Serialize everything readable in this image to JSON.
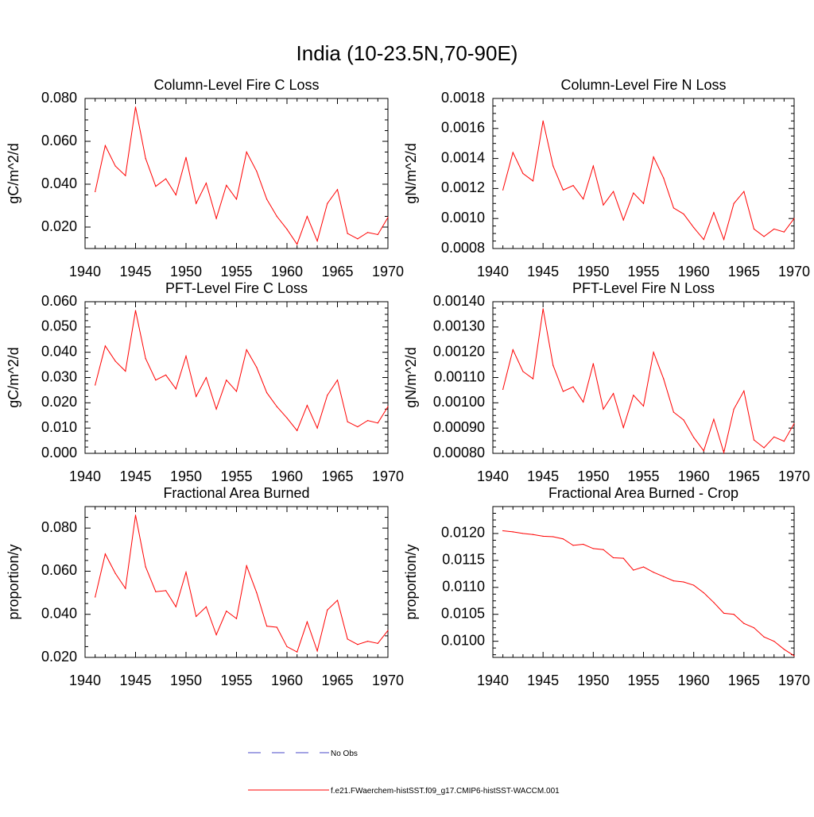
{
  "main_title": "India (10-23.5N,70-90E)",
  "legend": {
    "obs_label": "No Obs",
    "model_label": "f.e21.FWaerchem-histSST.f09_g17.CMIP6-histSST-WACCM.001",
    "obs_color": "#4a4ac8",
    "model_color": "#ff0000"
  },
  "chart_data": [
    {
      "type": "line",
      "title": "Column-Level Fire C Loss",
      "xlabel": "",
      "ylabel": "gC/m^2/d",
      "xlim": [
        1940,
        1970
      ],
      "ylim": [
        0.01,
        0.08
      ],
      "yticks": [
        0.02,
        0.04,
        0.06,
        0.08
      ],
      "ytick_labels": [
        "0.020",
        "0.040",
        "0.060",
        "0.080"
      ],
      "xticks": [
        1940,
        1945,
        1950,
        1955,
        1960,
        1965,
        1970
      ],
      "xtick_labels": [
        "1940",
        "1945",
        "1950",
        "1955",
        "1960",
        "1965",
        "1970"
      ],
      "x": [
        1941,
        1942,
        1943,
        1944,
        1945,
        1946,
        1947,
        1948,
        1949,
        1950,
        1951,
        1952,
        1953,
        1954,
        1955,
        1956,
        1957,
        1958,
        1959,
        1960,
        1961,
        1962,
        1963,
        1964,
        1965,
        1966,
        1967,
        1968,
        1969,
        1970
      ],
      "series": [
        {
          "values": [
            0.0365,
            0.058,
            0.0485,
            0.044,
            0.076,
            0.052,
            0.039,
            0.0425,
            0.035,
            0.0525,
            0.031,
            0.0405,
            0.024,
            0.0395,
            0.033,
            0.055,
            0.046,
            0.033,
            0.025,
            0.019,
            0.012,
            0.025,
            0.0135,
            0.031,
            0.0375,
            0.017,
            0.0145,
            0.0175,
            0.0165,
            0.0245
          ]
        }
      ]
    },
    {
      "type": "line",
      "title": "Column-Level Fire N Loss",
      "xlabel": "",
      "ylabel": "gN/m^2/d",
      "xlim": [
        1940,
        1970
      ],
      "ylim": [
        0.0008,
        0.0018
      ],
      "yticks": [
        0.0008,
        0.001,
        0.0012,
        0.0014,
        0.0016,
        0.0018
      ],
      "ytick_labels": [
        "0.0008",
        "0.0010",
        "0.0012",
        "0.0014",
        "0.0016",
        "0.0018"
      ],
      "xticks": [
        1940,
        1945,
        1950,
        1955,
        1960,
        1965,
        1970
      ],
      "xtick_labels": [
        "1940",
        "1945",
        "1950",
        "1955",
        "1960",
        "1965",
        "1970"
      ],
      "x": [
        1941,
        1942,
        1943,
        1944,
        1945,
        1946,
        1947,
        1948,
        1949,
        1950,
        1951,
        1952,
        1953,
        1954,
        1955,
        1956,
        1957,
        1958,
        1959,
        1960,
        1961,
        1962,
        1963,
        1964,
        1965,
        1966,
        1967,
        1968,
        1969,
        1970
      ],
      "series": [
        {
          "values": [
            0.00119,
            0.00144,
            0.0013,
            0.00125,
            0.00165,
            0.00135,
            0.00119,
            0.00122,
            0.00113,
            0.00135,
            0.00109,
            0.00118,
            0.00099,
            0.00117,
            0.0011,
            0.00141,
            0.00127,
            0.00107,
            0.00103,
            0.00094,
            0.00086,
            0.00104,
            0.00086,
            0.0011,
            0.00118,
            0.00093,
            0.00088,
            0.00093,
            0.00091,
            0.001
          ]
        }
      ]
    },
    {
      "type": "line",
      "title": "PFT-Level Fire C Loss",
      "xlabel": "",
      "ylabel": "gC/m^2/d",
      "xlim": [
        1940,
        1970
      ],
      "ylim": [
        0.0,
        0.06
      ],
      "yticks": [
        0.0,
        0.01,
        0.02,
        0.03,
        0.04,
        0.05,
        0.06
      ],
      "ytick_labels": [
        "0.000",
        "0.010",
        "0.020",
        "0.030",
        "0.040",
        "0.050",
        "0.060"
      ],
      "xticks": [
        1940,
        1945,
        1950,
        1955,
        1960,
        1965,
        1970
      ],
      "xtick_labels": [
        "1940",
        "1945",
        "1950",
        "1955",
        "1960",
        "1965",
        "1970"
      ],
      "x": [
        1941,
        1942,
        1943,
        1944,
        1945,
        1946,
        1947,
        1948,
        1949,
        1950,
        1951,
        1952,
        1953,
        1954,
        1955,
        1956,
        1957,
        1958,
        1959,
        1960,
        1961,
        1962,
        1963,
        1964,
        1965,
        1966,
        1967,
        1968,
        1969,
        1970
      ],
      "series": [
        {
          "values": [
            0.027,
            0.0425,
            0.0365,
            0.0325,
            0.0565,
            0.0375,
            0.029,
            0.031,
            0.0255,
            0.0385,
            0.0225,
            0.03,
            0.0175,
            0.029,
            0.0245,
            0.041,
            0.034,
            0.024,
            0.0185,
            0.014,
            0.009,
            0.019,
            0.01,
            0.023,
            0.029,
            0.0125,
            0.0105,
            0.013,
            0.012,
            0.0185
          ]
        }
      ]
    },
    {
      "type": "line",
      "title": "PFT-Level Fire N Loss",
      "xlabel": "",
      "ylabel": "gN/m^2/d",
      "xlim": [
        1940,
        1970
      ],
      "ylim": [
        0.0008,
        0.0014
      ],
      "yticks": [
        0.0008,
        0.0009,
        0.001,
        0.0011,
        0.0012,
        0.0013,
        0.0014
      ],
      "ytick_labels": [
        "0.00080",
        "0.00090",
        "0.00100",
        "0.00110",
        "0.00120",
        "0.00130",
        "0.00140"
      ],
      "xticks": [
        1940,
        1945,
        1950,
        1955,
        1960,
        1965,
        1970
      ],
      "xtick_labels": [
        "1940",
        "1945",
        "1950",
        "1955",
        "1960",
        "1965",
        "1970"
      ],
      "x": [
        1941,
        1942,
        1943,
        1944,
        1945,
        1946,
        1947,
        1948,
        1949,
        1950,
        1951,
        1952,
        1953,
        1954,
        1955,
        1956,
        1957,
        1958,
        1959,
        1960,
        1961,
        1962,
        1963,
        1964,
        1965,
        1966,
        1967,
        1968,
        1969,
        1970
      ],
      "series": [
        {
          "values": [
            0.001053,
            0.00121,
            0.001124,
            0.001095,
            0.001372,
            0.001148,
            0.001045,
            0.001063,
            0.001003,
            0.001155,
            0.000975,
            0.001037,
            0.000902,
            0.00103,
            0.000987,
            0.0012,
            0.001095,
            0.000963,
            0.000932,
            0.000863,
            0.00081,
            0.000935,
            0.000803,
            0.000975,
            0.001047,
            0.000853,
            0.000822,
            0.000865,
            0.000848,
            0.000918
          ]
        }
      ]
    },
    {
      "type": "line",
      "title": "Fractional Area Burned",
      "xlabel": "",
      "ylabel": "proportion/y",
      "xlim": [
        1940,
        1970
      ],
      "ylim": [
        0.02,
        0.09
      ],
      "yticks": [
        0.02,
        0.04,
        0.06,
        0.08
      ],
      "ytick_labels": [
        "0.020",
        "0.040",
        "0.060",
        "0.080"
      ],
      "xticks": [
        1940,
        1945,
        1950,
        1955,
        1960,
        1965,
        1970
      ],
      "xtick_labels": [
        "1940",
        "1945",
        "1950",
        "1955",
        "1960",
        "1965",
        "1970"
      ],
      "x": [
        1941,
        1942,
        1943,
        1944,
        1945,
        1946,
        1947,
        1948,
        1949,
        1950,
        1951,
        1952,
        1953,
        1954,
        1955,
        1956,
        1957,
        1958,
        1959,
        1960,
        1961,
        1962,
        1963,
        1964,
        1965,
        1966,
        1967,
        1968,
        1969,
        1970
      ],
      "series": [
        {
          "values": [
            0.048,
            0.068,
            0.059,
            0.052,
            0.086,
            0.062,
            0.0505,
            0.051,
            0.0435,
            0.0595,
            0.039,
            0.0435,
            0.0305,
            0.0415,
            0.038,
            0.0625,
            0.05,
            0.0345,
            0.034,
            0.025,
            0.0225,
            0.0365,
            0.023,
            0.042,
            0.0465,
            0.0285,
            0.026,
            0.0275,
            0.0265,
            0.0325
          ]
        }
      ]
    },
    {
      "type": "line",
      "title": "Fractional Area Burned - Crop",
      "xlabel": "",
      "ylabel": "proportion/y",
      "xlim": [
        1940,
        1970
      ],
      "ylim": [
        0.0097,
        0.0125
      ],
      "yticks": [
        0.01,
        0.0105,
        0.011,
        0.0115,
        0.012
      ],
      "ytick_labels": [
        "0.0100",
        "0.0105",
        "0.0110",
        "0.0115",
        "0.0120"
      ],
      "xticks": [
        1940,
        1945,
        1950,
        1955,
        1960,
        1965,
        1970
      ],
      "xtick_labels": [
        "1940",
        "1945",
        "1950",
        "1955",
        "1960",
        "1965",
        "1970"
      ],
      "x": [
        1941,
        1942,
        1943,
        1944,
        1945,
        1946,
        1947,
        1948,
        1949,
        1950,
        1951,
        1952,
        1953,
        1954,
        1955,
        1956,
        1957,
        1958,
        1959,
        1960,
        1961,
        1962,
        1963,
        1964,
        1965,
        1966,
        1967,
        1968,
        1969,
        1970
      ],
      "series": [
        {
          "values": [
            0.01205,
            0.01203,
            0.012,
            0.01198,
            0.01195,
            0.01194,
            0.0119,
            0.01178,
            0.0118,
            0.01172,
            0.0117,
            0.01155,
            0.01154,
            0.01132,
            0.01138,
            0.01128,
            0.0112,
            0.01112,
            0.0111,
            0.01104,
            0.0109,
            0.01072,
            0.01052,
            0.0105,
            0.01033,
            0.01025,
            0.01008,
            0.01,
            0.00985,
            0.00973
          ]
        }
      ]
    }
  ]
}
